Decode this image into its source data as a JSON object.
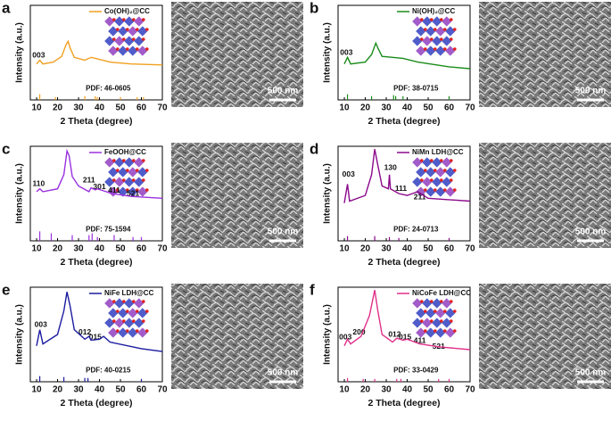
{
  "chart_data": [
    {
      "type": "line",
      "label": "a",
      "xlabel": "2 Theta (degree)",
      "ylabel": "Intensity (a.u.)",
      "xlim": [
        7,
        70
      ],
      "xticks": [
        10,
        20,
        30,
        40,
        50,
        60,
        70
      ],
      "ylim": [
        0,
        100
      ],
      "series": [
        {
          "name": "Co(OH)₂@CC",
          "color": "#f0a020",
          "x": [
            10,
            11.5,
            13,
            18,
            22,
            24,
            25,
            26,
            28,
            33,
            36,
            38,
            45,
            55,
            70
          ],
          "values": [
            38,
            42,
            38,
            40,
            46,
            58,
            62,
            55,
            45,
            42,
            45,
            44,
            40,
            38,
            37
          ]
        }
      ],
      "reference": {
        "name": "PDF: 46-0605",
        "x": [
          11.5,
          19,
          33,
          38,
          39,
          50,
          58,
          61
        ],
        "values": [
          6,
          3,
          4,
          4,
          3,
          3,
          3,
          3
        ]
      },
      "annotations": [
        {
          "text": "003",
          "x": 11,
          "y": 47,
          "color": "#111"
        }
      ],
      "scale_bar": "500 nm"
    },
    {
      "type": "line",
      "label": "b",
      "xlabel": "2 Theta (degree)",
      "ylabel": "Intensity (a.u.)",
      "xlim": [
        7,
        70
      ],
      "xticks": [
        10,
        20,
        30,
        40,
        50,
        60,
        70
      ],
      "ylim": [
        0,
        100
      ],
      "series": [
        {
          "name": "Ni(OH)₂@CC",
          "color": "#1a8c1a",
          "x": [
            10,
            11.5,
            13,
            20,
            23,
            25,
            26,
            28,
            33,
            38,
            45,
            60,
            70
          ],
          "values": [
            38,
            45,
            38,
            40,
            48,
            60,
            55,
            46,
            45,
            44,
            40,
            35,
            33
          ]
        }
      ],
      "reference": {
        "name": "PDF: 38-0715",
        "x": [
          11.5,
          23,
          33.5,
          34.5,
          38,
          60
        ],
        "values": [
          6,
          4,
          5,
          4,
          4,
          4
        ]
      },
      "annotations": [
        {
          "text": "003",
          "x": 11,
          "y": 50,
          "color": "#111"
        }
      ],
      "scale_bar": "500 nm"
    },
    {
      "type": "line",
      "label": "c",
      "xlabel": "2 Theta (degree)",
      "ylabel": "Intensity (a.u.)",
      "xlim": [
        7,
        70
      ],
      "xticks": [
        10,
        20,
        30,
        40,
        50,
        60,
        70
      ],
      "ylim": [
        0,
        100
      ],
      "series": [
        {
          "name": "FeOOH@CC",
          "color": "#9a30e0",
          "x": [
            10,
            11.5,
            13,
            20,
            23,
            24.5,
            25.5,
            27,
            30,
            35,
            36,
            38,
            39,
            46,
            55,
            70
          ],
          "values": [
            52,
            55,
            52,
            55,
            70,
            95,
            90,
            68,
            58,
            52,
            56,
            54,
            55,
            50,
            47,
            45
          ]
        }
      ],
      "reference": {
        "name": "PDF: 75-1594",
        "x": [
          11.5,
          17,
          27,
          35,
          36.5,
          39,
          47,
          56,
          60
        ],
        "values": [
          10,
          8,
          6,
          6,
          8,
          4,
          6,
          4,
          4
        ]
      },
      "annotations": [
        {
          "text": "110",
          "x": 11,
          "y": 60,
          "color": "#7a20c0"
        },
        {
          "text": "211",
          "x": 35,
          "y": 64,
          "color": "#7a20c0"
        },
        {
          "text": "301",
          "x": 40,
          "y": 57,
          "color": "#7a20c0"
        },
        {
          "text": "411",
          "x": 47,
          "y": 53,
          "color": "#7a20c0"
        },
        {
          "text": "521",
          "x": 56,
          "y": 50,
          "color": "#7a20c0"
        }
      ],
      "scale_bar": "500 nm"
    },
    {
      "type": "line",
      "label": "d",
      "xlabel": "2 Theta (degree)",
      "ylabel": "Intensity (a.u.)",
      "xlim": [
        7,
        70
      ],
      "xticks": [
        10,
        20,
        30,
        40,
        50,
        60,
        70
      ],
      "ylim": [
        0,
        100
      ],
      "series": [
        {
          "name": "NiMn LDH@CC",
          "color": "#8b0a8b",
          "x": [
            10,
            11.5,
            12.5,
            20,
            23,
            24.5,
            26,
            28,
            31,
            31.5,
            32,
            36,
            40,
            45,
            50,
            70
          ],
          "values": [
            40,
            60,
            42,
            48,
            70,
            97,
            80,
            58,
            55,
            70,
            55,
            50,
            48,
            52,
            45,
            42
          ]
        }
      ],
      "reference": {
        "name": "PDF: 24-0713",
        "x": [
          11.5,
          24.5,
          31.5,
          36,
          60
        ],
        "values": [
          5,
          5,
          4,
          3,
          3
        ]
      },
      "annotations": [
        {
          "text": "003",
          "x": 12,
          "y": 70,
          "color": "#1a8c1a"
        },
        {
          "text": "130",
          "x": 32,
          "y": 77,
          "color": "#111"
        },
        {
          "text": "111",
          "x": 37,
          "y": 55,
          "color": "#111"
        },
        {
          "text": "211",
          "x": 46,
          "y": 46,
          "color": "#111"
        }
      ],
      "scale_bar": "500 nm"
    },
    {
      "type": "line",
      "label": "e",
      "xlabel": "2 Theta (degree)",
      "ylabel": "Intensity (a.u.)",
      "xlim": [
        7,
        70
      ],
      "xticks": [
        10,
        20,
        30,
        40,
        50,
        60,
        70
      ],
      "ylim": [
        0,
        100
      ],
      "series": [
        {
          "name": "NiFe LDH@CC",
          "color": "#1a1aa0",
          "x": [
            10,
            11.5,
            13,
            20,
            23,
            24.5,
            26,
            28,
            33,
            35,
            36,
            40,
            42,
            45,
            60,
            70
          ],
          "values": [
            38,
            55,
            40,
            50,
            75,
            95,
            80,
            55,
            45,
            48,
            44,
            45,
            48,
            42,
            35,
            32
          ]
        }
      ],
      "reference": {
        "name": "PDF: 40-0215",
        "x": [
          11.5,
          23,
          33,
          34.5,
          60
        ],
        "values": [
          6,
          5,
          4,
          4,
          3
        ]
      },
      "annotations": [
        {
          "text": "003",
          "x": 12,
          "y": 60,
          "color": "#1a1aa0"
        },
        {
          "text": "012",
          "x": 33,
          "y": 52,
          "color": "#111"
        },
        {
          "text": "015",
          "x": 38,
          "y": 47,
          "color": "#111"
        }
      ],
      "scale_bar": "500 nm"
    },
    {
      "type": "line",
      "label": "f",
      "xlabel": "2 Theta (degree)",
      "ylabel": "Intensity (a.u.)",
      "xlim": [
        7,
        70
      ],
      "xticks": [
        10,
        20,
        30,
        40,
        50,
        60,
        70
      ],
      "ylim": [
        0,
        100
      ],
      "series": [
        {
          "name": "NiCoFe LDH@CC",
          "color": "#e0308a",
          "x": [
            10,
            11.5,
            13,
            18,
            22,
            24.5,
            26,
            28,
            33,
            35,
            38,
            40,
            46,
            55,
            70
          ],
          "values": [
            38,
            45,
            40,
            48,
            70,
            97,
            75,
            50,
            42,
            46,
            44,
            45,
            40,
            37,
            34
          ]
        }
      ],
      "reference": {
        "name": "PDF: 33-0429",
        "x": [
          11.5,
          19,
          24.5,
          35,
          37,
          55,
          60
        ],
        "values": [
          4,
          3,
          3,
          3,
          3,
          3,
          3
        ]
      },
      "annotations": [
        {
          "text": "003",
          "x": 10.5,
          "y": 47,
          "color": "#111"
        },
        {
          "text": "200",
          "x": 17,
          "y": 52,
          "color": "#7a20c0"
        },
        {
          "text": "012",
          "x": 34,
          "y": 50,
          "color": "#111"
        },
        {
          "text": "015",
          "x": 39,
          "y": 47,
          "color": "#111"
        },
        {
          "text": "411",
          "x": 46,
          "y": 43,
          "color": "#7a20c0"
        },
        {
          "text": "521",
          "x": 55,
          "y": 37,
          "color": "#7a20c0"
        }
      ],
      "scale_bar": "500 nm"
    }
  ]
}
